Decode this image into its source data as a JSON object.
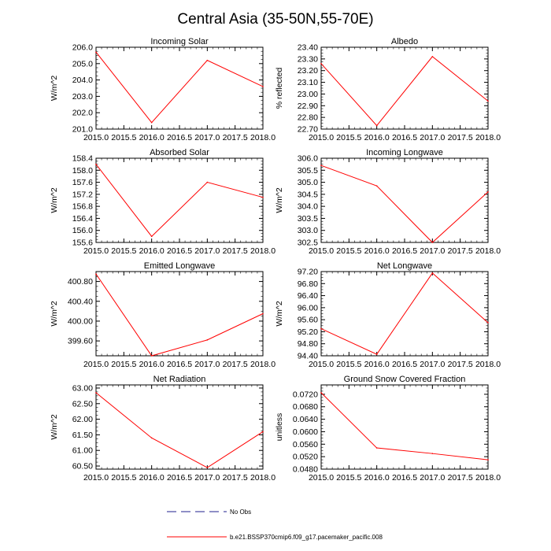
{
  "title": "Central Asia (35-50N,55-70E)",
  "chart_data": [
    {
      "type": "line",
      "title": "Incoming Solar",
      "ylabel": "W/m^2",
      "x": [
        2015,
        2016,
        2017,
        2018
      ],
      "xticks": [
        "2015.0",
        "2015.5",
        "2016.0",
        "2016.5",
        "2017.0",
        "2017.5",
        "2018.0"
      ],
      "xlim": [
        2015,
        2018
      ],
      "yticks": [
        "201.0",
        "202.0",
        "203.0",
        "204.0",
        "205.0",
        "206.0"
      ],
      "ylim": [
        201.0,
        206.0
      ],
      "series": [
        {
          "values": [
            205.7,
            201.4,
            205.2,
            203.6
          ]
        }
      ]
    },
    {
      "type": "line",
      "title": "Albedo",
      "ylabel": "% reflected",
      "x": [
        2015,
        2016,
        2017,
        2018
      ],
      "xticks": [
        "2015.0",
        "2015.5",
        "2016.0",
        "2016.5",
        "2017.0",
        "2017.5",
        "2018.0"
      ],
      "xlim": [
        2015,
        2018
      ],
      "yticks": [
        "22.70",
        "22.80",
        "22.90",
        "23.00",
        "23.10",
        "23.20",
        "23.30",
        "23.40"
      ],
      "ylim": [
        22.7,
        23.4
      ],
      "series": [
        {
          "values": [
            23.26,
            22.73,
            23.32,
            22.94
          ]
        }
      ]
    },
    {
      "type": "line",
      "title": "Absorbed Solar",
      "ylabel": "W/m^2",
      "x": [
        2015,
        2016,
        2017,
        2018
      ],
      "xticks": [
        "2015.0",
        "2015.5",
        "2016.0",
        "2016.5",
        "2017.0",
        "2017.5",
        "2018.0"
      ],
      "xlim": [
        2015,
        2018
      ],
      "yticks": [
        "155.6",
        "156.0",
        "156.4",
        "156.8",
        "157.2",
        "157.6",
        "158.0",
        "158.4"
      ],
      "ylim": [
        155.6,
        158.4
      ],
      "series": [
        {
          "values": [
            158.2,
            155.8,
            157.6,
            157.1
          ]
        }
      ]
    },
    {
      "type": "line",
      "title": "Incoming Longwave",
      "ylabel": "W/m^2",
      "x": [
        2015,
        2016,
        2017,
        2018
      ],
      "xticks": [
        "2015.0",
        "2015.5",
        "2016.0",
        "2016.5",
        "2017.0",
        "2017.5",
        "2018.0"
      ],
      "xlim": [
        2015,
        2018
      ],
      "yticks": [
        "302.5",
        "303.0",
        "303.5",
        "304.0",
        "304.5",
        "305.0",
        "305.5",
        "306.0"
      ],
      "ylim": [
        302.5,
        306.0
      ],
      "series": [
        {
          "values": [
            305.7,
            304.85,
            302.5,
            304.6
          ]
        }
      ]
    },
    {
      "type": "line",
      "title": "Emitted Longwave",
      "ylabel": "W/m^2",
      "x": [
        2015,
        2016,
        2017,
        2018
      ],
      "xticks": [
        "2015.0",
        "2015.5",
        "2016.0",
        "2016.5",
        "2017.0",
        "2017.5",
        "2018.0"
      ],
      "xlim": [
        2015,
        2018
      ],
      "yticks": [
        "399.60",
        "400.00",
        "400.40",
        "400.80"
      ],
      "ylim": [
        399.3,
        401.0
      ],
      "series": [
        {
          "values": [
            400.95,
            399.3,
            399.62,
            400.15
          ]
        }
      ]
    },
    {
      "type": "line",
      "title": "Net Longwave",
      "ylabel": "W/m^2",
      "x": [
        2015,
        2016,
        2017,
        2018
      ],
      "xticks": [
        "2015.0",
        "2015.5",
        "2016.0",
        "2016.5",
        "2017.0",
        "2017.5",
        "2018.0"
      ],
      "xlim": [
        2015,
        2018
      ],
      "yticks": [
        "94.40",
        "94.80",
        "95.20",
        "95.60",
        "96.00",
        "96.40",
        "96.80",
        "97.20"
      ],
      "ylim": [
        94.4,
        97.2
      ],
      "series": [
        {
          "values": [
            95.3,
            94.45,
            97.15,
            95.5
          ]
        }
      ]
    },
    {
      "type": "line",
      "title": "Net Radiation",
      "ylabel": "W/m^2",
      "x": [
        2015,
        2016,
        2017,
        2018
      ],
      "xticks": [
        "2015.0",
        "2015.5",
        "2016.0",
        "2016.5",
        "2017.0",
        "2017.5",
        "2018.0"
      ],
      "xlim": [
        2015,
        2018
      ],
      "yticks": [
        "60.50",
        "61.00",
        "61.50",
        "62.00",
        "62.50",
        "63.00"
      ],
      "ylim": [
        60.4,
        63.1
      ],
      "series": [
        {
          "values": [
            62.85,
            61.4,
            60.45,
            61.6
          ]
        }
      ]
    },
    {
      "type": "line",
      "title": "Ground Snow Covered Fraction",
      "ylabel": "unitless",
      "x": [
        2015,
        2016,
        2017,
        2018
      ],
      "xticks": [
        "2015.0",
        "2015.5",
        "2016.0",
        "2016.5",
        "2017.0",
        "2017.5",
        "2018.0"
      ],
      "xlim": [
        2015,
        2018
      ],
      "yticks": [
        "0.0480",
        "0.0520",
        "0.0560",
        "0.0600",
        "0.0640",
        "0.0680",
        "0.0720"
      ],
      "ylim": [
        0.048,
        0.075
      ],
      "series": [
        {
          "values": [
            0.0725,
            0.0548,
            0.053,
            0.051
          ]
        }
      ]
    }
  ],
  "legend": [
    {
      "label": "No Obs",
      "color": "#1f1f8f",
      "dashed": true
    },
    {
      "label": "b.e21.BSSP370cmip6.f09_g17.pacemaker_pacific.008",
      "color": "#ff0000",
      "dashed": false
    }
  ],
  "colors": {
    "series": "#ff0000",
    "axis": "#000000"
  }
}
